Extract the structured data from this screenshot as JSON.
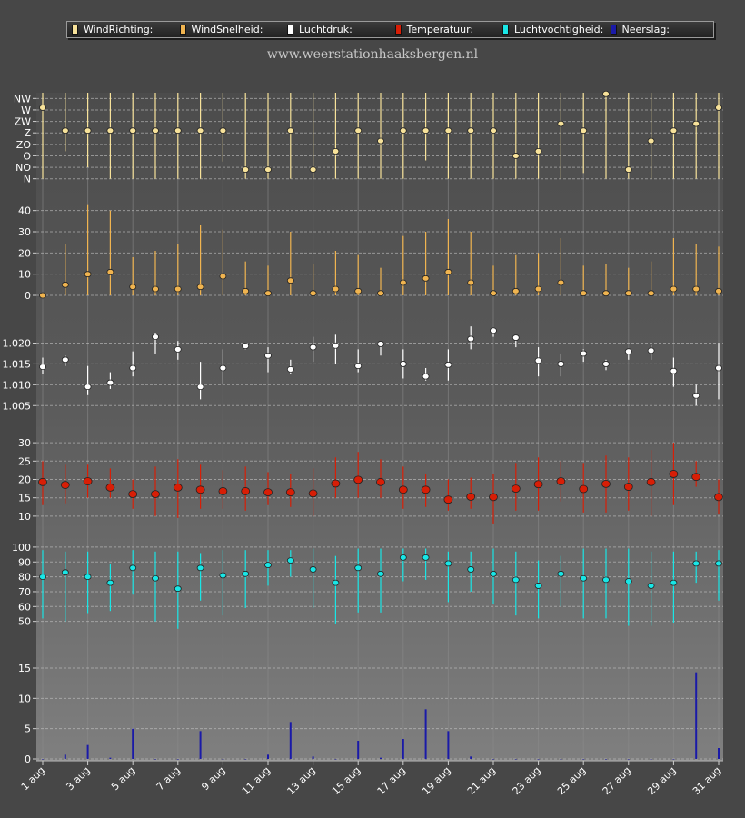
{
  "site_title": "www.weerstationhaaksbergen.nl",
  "legend": [
    {
      "label": "WindRichting:",
      "color": "#f7e29a"
    },
    {
      "label": "WindSnelheid:",
      "color": "#f0b450"
    },
    {
      "label": "Luchtdruk:",
      "color": "#ffffff"
    },
    {
      "label": "Temperatuur:",
      "color": "#d81e06"
    },
    {
      "label": "Luchtvochtigheid:",
      "color": "#19e6e6"
    },
    {
      "label": "Neerslag:",
      "color": "#1a1aa8"
    }
  ],
  "chart_data": {
    "type": "multi-panel",
    "x_ticks": [
      "1 aug",
      "3 aug",
      "5 aug",
      "7 aug",
      "9 aug",
      "11 aug",
      "13 aug",
      "15 aug",
      "17 aug",
      "19 aug",
      "21 aug",
      "23 aug",
      "25 aug",
      "27 aug",
      "29 aug",
      "31 aug"
    ],
    "days": [
      1,
      2,
      3,
      4,
      5,
      6,
      7,
      8,
      9,
      10,
      11,
      12,
      13,
      14,
      15,
      16,
      17,
      18,
      19,
      20,
      21,
      22,
      23,
      24,
      25,
      26,
      27,
      28,
      29,
      30,
      31
    ],
    "panels": [
      {
        "name": "WindRichting",
        "color": "#f7e29a",
        "ytype": "category",
        "ytick_labels": [
          "NW",
          "W",
          "ZW",
          "Z",
          "ZO",
          "O",
          "NO",
          "N"
        ],
        "yrange": [
          -0.5,
          7.5
        ],
        "mean": [
          6.2,
          4.2,
          4.2,
          4.2,
          4.2,
          4.2,
          4.2,
          4.2,
          4.2,
          0.8,
          0.8,
          4.2,
          0.8,
          2.4,
          4.2,
          3.3,
          4.2,
          4.2,
          4.2,
          4.2,
          4.2,
          2,
          2.4,
          4.8,
          4.2,
          7.4,
          0.8,
          3.3,
          4.2,
          4.8,
          6.2
        ],
        "low": [
          0,
          2.4,
          1,
          0,
          0,
          0,
          0,
          0,
          1.5,
          0,
          0,
          0,
          0,
          0,
          0,
          0,
          0,
          1.6,
          0,
          0,
          0,
          0,
          0,
          0,
          0.5,
          0,
          0,
          0,
          0,
          0,
          0
        ],
        "high": [
          7.5,
          7.5,
          7.5,
          7.5,
          7.5,
          7.5,
          7.5,
          7.5,
          7.5,
          7.5,
          7.5,
          7.5,
          7.5,
          7.5,
          7.5,
          7.5,
          7.5,
          7.5,
          7.5,
          7.5,
          7.5,
          7.5,
          7.5,
          7.5,
          7.5,
          7.5,
          7.5,
          7.5,
          7.5,
          7.5,
          7.5
        ]
      },
      {
        "name": "WindSnelheid",
        "color": "#f0b450",
        "ytype": "linear",
        "ytick_labels": [
          "0",
          "10",
          "20",
          "30",
          "40"
        ],
        "ytick_values": [
          0,
          10,
          20,
          30,
          40
        ],
        "yrange": [
          -3,
          45
        ],
        "mean": [
          0,
          5,
          10,
          11,
          4,
          3,
          3,
          4,
          9,
          2,
          1,
          7,
          1,
          3,
          2,
          1,
          6,
          8,
          11,
          6,
          1,
          2,
          3,
          6,
          1,
          1,
          1,
          1,
          3,
          3,
          2
        ],
        "low": [
          0,
          0,
          0,
          0,
          0,
          0,
          0,
          0,
          0,
          0,
          0,
          0,
          0,
          0,
          0,
          0,
          0,
          0,
          0,
          0,
          0,
          0,
          0,
          0,
          0,
          0,
          0,
          0,
          0,
          0,
          0
        ],
        "high": [
          0,
          24,
          43,
          40,
          18,
          21,
          24,
          33,
          31,
          16,
          14,
          30,
          15,
          21,
          19,
          13,
          28,
          30,
          36,
          30,
          14,
          19,
          20,
          27,
          14,
          15,
          13,
          16,
          27,
          24,
          23
        ]
      },
      {
        "name": "Luchtdruk",
        "color": "#ffffff",
        "ytype": "linear",
        "ytick_labels": [
          "1.005",
          "1.010",
          "1.015",
          "1.020"
        ],
        "ytick_values": [
          1005,
          1010,
          1015,
          1020
        ],
        "yrange": [
          1002,
          1026
        ],
        "mean": [
          1014.3,
          1016,
          1009.5,
          1010.5,
          1014,
          1021.5,
          1018.5,
          1009.5,
          1014,
          1019.3,
          1017,
          1013.7,
          1019,
          1019.4,
          1014.5,
          1019.8,
          1015,
          1012,
          1014.8,
          1021,
          1023,
          1021.3,
          1015.8,
          1015,
          1017.5,
          1015,
          1018,
          1018.2,
          1013.3,
          1007.4,
          1014
        ],
        "low": [
          1012.5,
          1014.5,
          1007.5,
          1009,
          1012,
          1017.5,
          1016,
          1006.5,
          1010,
          1018.5,
          1013,
          1012.5,
          1015.5,
          1015,
          1013,
          1017,
          1011.5,
          1011,
          1011,
          1018.5,
          1021.5,
          1019,
          1012,
          1012,
          1015.5,
          1013.5,
          1016,
          1016,
          1009.5,
          1005,
          1006.5
        ],
        "high": [
          1016.5,
          1017,
          1014.5,
          1013,
          1018,
          1022.5,
          1020.5,
          1015.5,
          1018.5,
          1020,
          1019,
          1016,
          1021.5,
          1022,
          1018.5,
          1020.5,
          1018.5,
          1014,
          1018.5,
          1024,
          1023.5,
          1022,
          1019,
          1017.5,
          1018.5,
          1016,
          1018.5,
          1019.5,
          1016.5,
          1010,
          1020
        ]
      },
      {
        "name": "Temperatuur",
        "color": "#d81e06",
        "ytype": "linear",
        "ytick_labels": [
          "10",
          "15",
          "20",
          "25",
          "30"
        ],
        "ytick_values": [
          10,
          15,
          20,
          25,
          30
        ],
        "yrange": [
          7,
          33
        ],
        "mean": [
          19.3,
          18.5,
          19.5,
          17.8,
          16,
          16,
          17.8,
          17.2,
          16.8,
          16.8,
          16.5,
          16.5,
          16.2,
          18.9,
          19.9,
          19.3,
          17.2,
          17.2,
          14.5,
          15.3,
          15.2,
          17.5,
          18.7,
          19.5,
          17.4,
          18.8,
          18,
          19.3,
          21.5,
          20.7,
          15.2
        ],
        "low": [
          13,
          13.5,
          15,
          15,
          12,
          10,
          9.5,
          12,
          12,
          11.5,
          13,
          12.5,
          10,
          15,
          15,
          15,
          12,
          12.5,
          11.5,
          12,
          8,
          11.5,
          11.5,
          14,
          11,
          11,
          11.5,
          10,
          13,
          18,
          10.5
        ],
        "high": [
          25,
          24,
          24,
          23,
          20,
          23.5,
          25.5,
          24,
          22.5,
          23.5,
          22,
          21.5,
          23,
          26,
          27.5,
          25.5,
          23.5,
          21.5,
          20,
          20.5,
          21.5,
          24.5,
          26,
          25,
          24.5,
          26.5,
          26,
          28,
          30,
          25,
          20
        ]
      },
      {
        "name": "Luchtvochtigheid",
        "color": "#19e6e6",
        "ytype": "linear",
        "ytick_labels": [
          "50",
          "60",
          "70",
          "80",
          "90",
          "100"
        ],
        "ytick_values": [
          50,
          60,
          70,
          80,
          90,
          100
        ],
        "yrange": [
          40,
          103
        ],
        "mean": [
          80,
          83,
          80,
          76,
          86,
          79,
          72,
          86,
          81,
          82,
          88,
          91,
          85,
          76,
          86,
          82,
          93,
          93,
          89,
          85,
          82,
          78,
          74,
          82,
          79,
          78,
          77,
          74,
          76,
          89,
          89
        ],
        "low": [
          52,
          50,
          55,
          57,
          68,
          50,
          45,
          64,
          54,
          59,
          74,
          80,
          59,
          48,
          56,
          56,
          77,
          78,
          63,
          70,
          62,
          54,
          52,
          60,
          52,
          52,
          47,
          47,
          49,
          76,
          64
        ],
        "high": [
          98,
          97,
          97,
          89,
          98,
          97,
          97,
          96,
          98,
          98,
          98,
          98,
          99,
          94,
          99,
          99,
          99,
          99,
          97,
          97,
          99,
          97,
          91,
          94,
          99,
          99,
          99,
          97,
          97,
          97,
          98
        ]
      },
      {
        "name": "Neerslag",
        "color": "#1a1aa8",
        "ytype": "linear",
        "ytick_labels": [
          "0",
          "5",
          "10",
          "15"
        ],
        "ytick_values": [
          0,
          5,
          10,
          15
        ],
        "yrange": [
          -0.3,
          18
        ],
        "values": [
          0,
          0.7,
          2.3,
          0.2,
          5,
          0,
          0,
          4.6,
          0,
          0,
          0.7,
          6.1,
          0.4,
          0,
          3,
          0.2,
          3.3,
          8.2,
          4.6,
          0.4,
          0,
          0,
          0,
          0,
          0,
          0,
          0,
          0,
          0,
          14.3,
          1.8
        ]
      }
    ]
  }
}
